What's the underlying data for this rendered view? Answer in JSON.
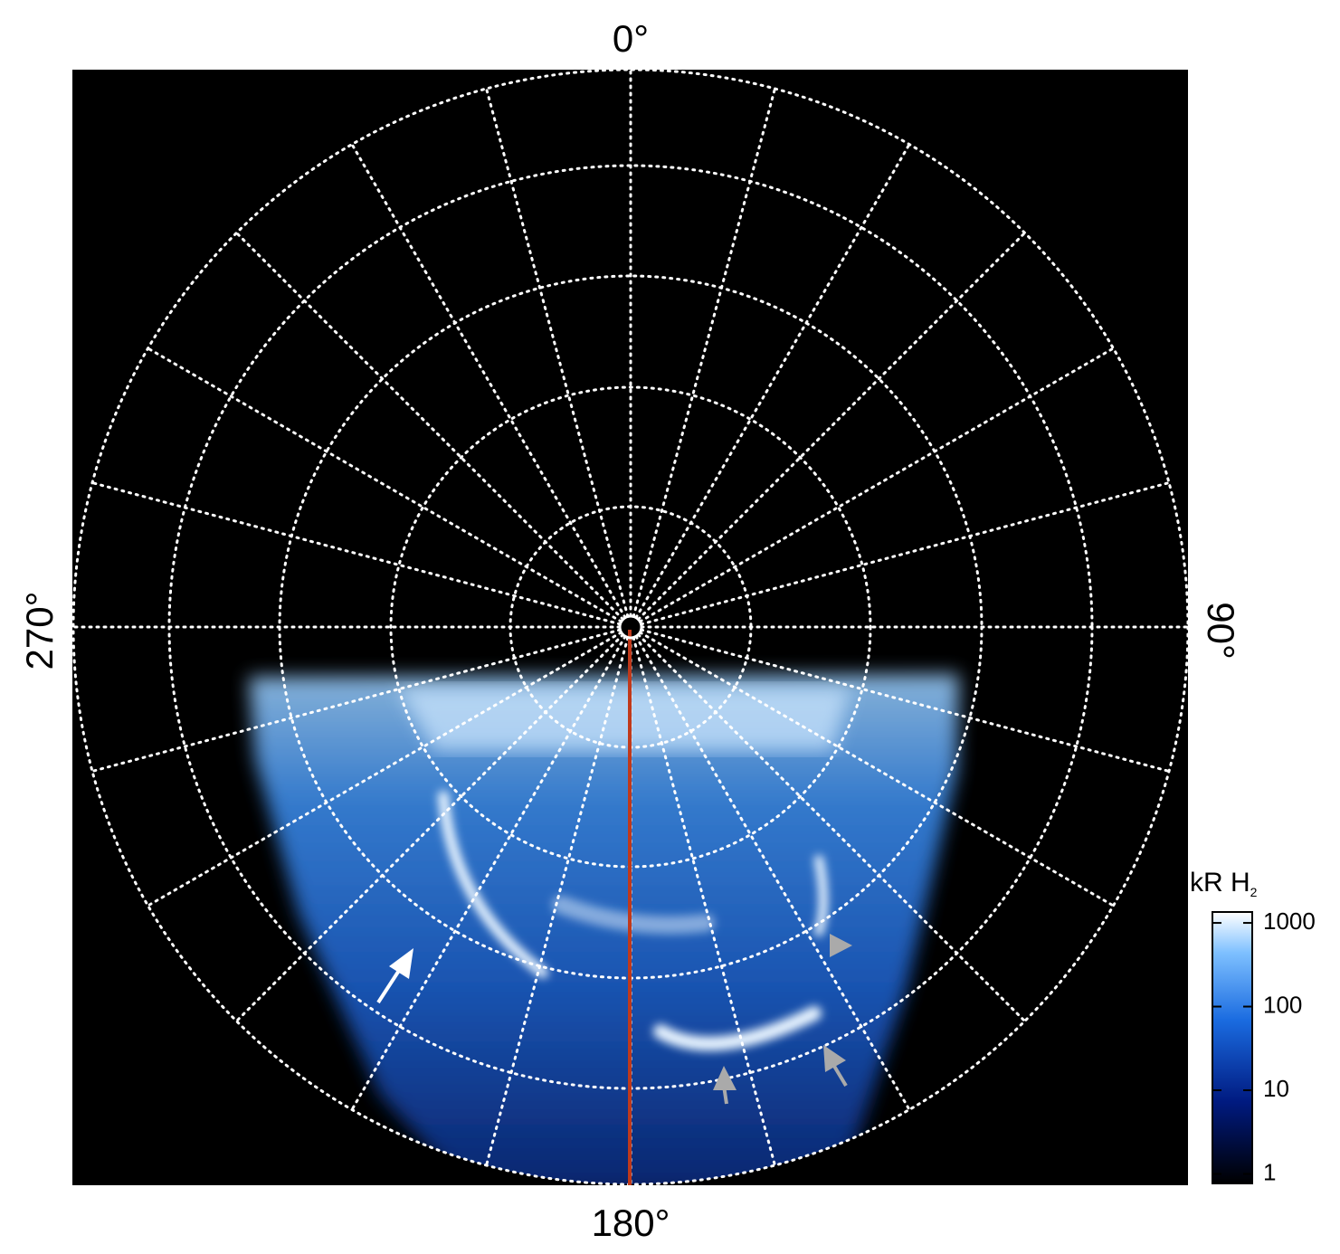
{
  "labels": {
    "top": "0°",
    "right": "90°",
    "bottom": "180°",
    "left": "270°"
  },
  "colorbar": {
    "title": "kR H",
    "title_subscript": "2",
    "scale": "log",
    "lim": [
      0.77,
      1350
    ],
    "ticks": [
      1,
      10,
      100,
      1000
    ]
  }
}
